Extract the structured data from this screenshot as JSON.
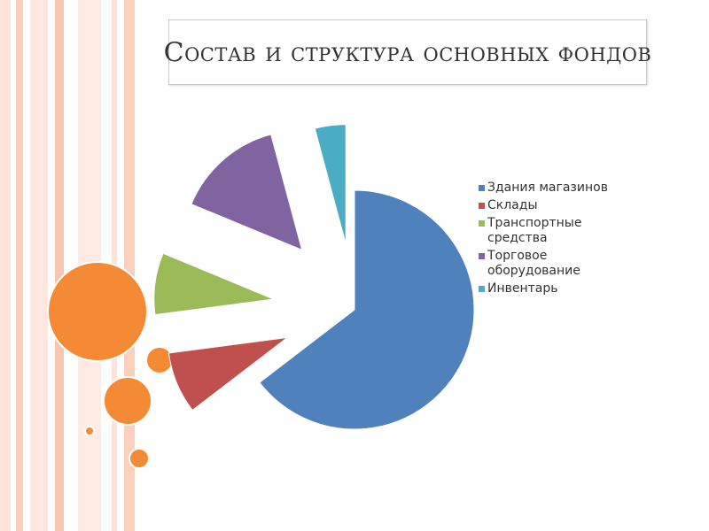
{
  "slide": {
    "title": "Состав и структура основных фондов",
    "stripe_colors": [
      "#fde3d8",
      "#fbd0bd",
      "#fde7de",
      "#f9c7b0",
      "#fdebe4"
    ],
    "circle_color": "#f58a35"
  },
  "chart_data": {
    "type": "pie",
    "title": "",
    "categories": [
      "Здания магазинов",
      "Склады",
      "Транспортные\nсредства",
      "Торговое\nоборудование",
      "Инвентарь"
    ],
    "values": [
      62,
      8,
      8,
      14,
      4
    ],
    "colors": [
      "#4f81bd",
      "#c0504d",
      "#9bbb59",
      "#8064a2",
      "#4bacc6"
    ],
    "exploded": true,
    "legend": "right"
  }
}
